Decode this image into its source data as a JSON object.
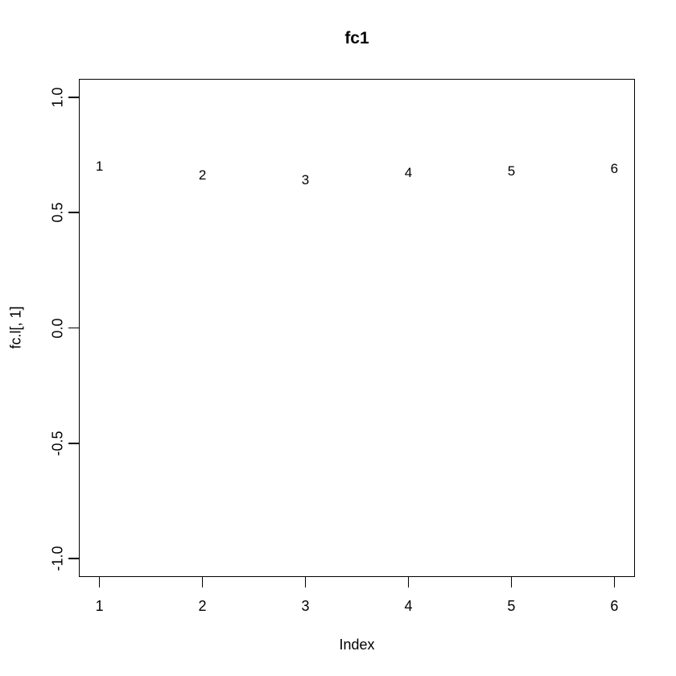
{
  "chart_data": {
    "type": "scatter",
    "title": "fc1",
    "xlabel": "Index",
    "ylabel": "fc.l[, 1]",
    "x": [
      1,
      2,
      3,
      4,
      5,
      6
    ],
    "values": [
      0.7,
      0.66,
      0.64,
      0.67,
      0.68,
      0.69
    ],
    "point_labels": [
      "1",
      "2",
      "3",
      "4",
      "5",
      "6"
    ],
    "point_style": "text-labels",
    "xticks": [
      1,
      2,
      3,
      4,
      5,
      6
    ],
    "xtick_labels": [
      "1",
      "2",
      "3",
      "4",
      "5",
      "6"
    ],
    "yticks": [
      1.0,
      0.5,
      0.0,
      -0.5,
      -1.0
    ],
    "ytick_labels": [
      "1.0",
      "0.5",
      "0.0",
      "-0.5",
      "-1.0"
    ],
    "xlim": [
      0.8,
      6.2
    ],
    "ylim": [
      -1.08,
      1.08
    ],
    "grid": false,
    "legend": "none",
    "colors": {
      "foreground": "#000000",
      "background": "#ffffff"
    }
  }
}
